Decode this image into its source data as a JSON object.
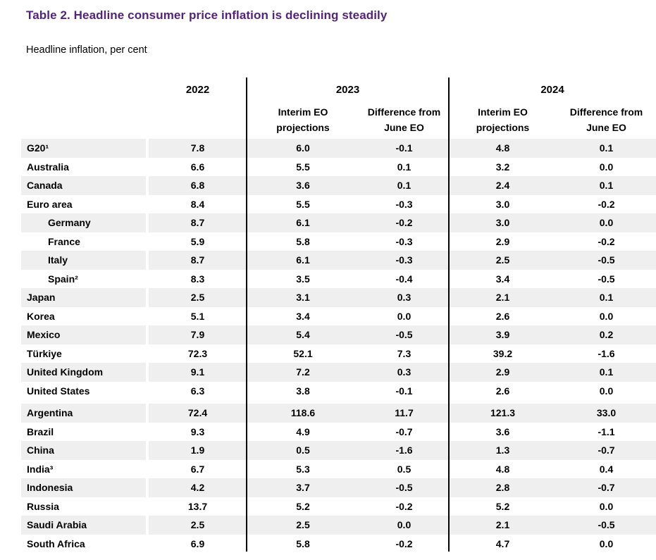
{
  "title": "Table 2. Headline consumer price inflation is declining steadily",
  "subtitle": "Headline inflation, per cent",
  "colors": {
    "title_purple": "#52247B",
    "row_shade": "#EFEFEF",
    "divider_black": "#000000"
  },
  "header": {
    "years": {
      "y2022": "2022",
      "y2023": "2023",
      "y2024": "2024"
    },
    "interim_line1": "Interim EO",
    "interim_line2": "projections",
    "diff_line1": "Difference from",
    "diff_line2": "June EO"
  },
  "rows": [
    {
      "label": "G20¹",
      "indent": false,
      "section": 1,
      "values": [
        "7.8",
        "6.0",
        "-0.1",
        "4.8",
        "0.1"
      ]
    },
    {
      "label": "Australia",
      "indent": false,
      "section": 1,
      "values": [
        "6.6",
        "5.5",
        "0.1",
        "3.2",
        "0.0"
      ]
    },
    {
      "label": "Canada",
      "indent": false,
      "section": 1,
      "values": [
        "6.8",
        "3.6",
        "0.1",
        "2.4",
        "0.1"
      ]
    },
    {
      "label": "Euro area",
      "indent": false,
      "section": 1,
      "values": [
        "8.4",
        "5.5",
        "-0.3",
        "3.0",
        "-0.2"
      ]
    },
    {
      "label": "Germany",
      "indent": true,
      "section": 1,
      "values": [
        "8.7",
        "6.1",
        "-0.2",
        "3.0",
        "0.0"
      ]
    },
    {
      "label": "France",
      "indent": true,
      "section": 1,
      "values": [
        "5.9",
        "5.8",
        "-0.3",
        "2.9",
        "-0.2"
      ]
    },
    {
      "label": "Italy",
      "indent": true,
      "section": 1,
      "values": [
        "8.7",
        "6.1",
        "-0.3",
        "2.5",
        "-0.5"
      ]
    },
    {
      "label": "Spain²",
      "indent": true,
      "section": 1,
      "values": [
        "8.3",
        "3.5",
        "-0.4",
        "3.4",
        "-0.5"
      ]
    },
    {
      "label": "Japan",
      "indent": false,
      "section": 1,
      "values": [
        "2.5",
        "3.1",
        "0.3",
        "2.1",
        "0.1"
      ]
    },
    {
      "label": "Korea",
      "indent": false,
      "section": 1,
      "values": [
        "5.1",
        "3.4",
        "0.0",
        "2.6",
        "0.0"
      ]
    },
    {
      "label": "Mexico",
      "indent": false,
      "section": 1,
      "values": [
        "7.9",
        "5.4",
        "-0.5",
        "3.9",
        "0.2"
      ]
    },
    {
      "label": "Türkiye",
      "indent": false,
      "section": 1,
      "values": [
        "72.3",
        "52.1",
        "7.3",
        "39.2",
        "-1.6"
      ]
    },
    {
      "label": "United Kingdom",
      "indent": false,
      "section": 1,
      "values": [
        "9.1",
        "7.2",
        "0.3",
        "2.9",
        "0.1"
      ]
    },
    {
      "label": "United States",
      "indent": false,
      "section": 1,
      "values": [
        "6.3",
        "3.8",
        "-0.1",
        "2.6",
        "0.0"
      ]
    },
    {
      "label": "Argentina",
      "indent": false,
      "section": 2,
      "values": [
        "72.4",
        "118.6",
        "11.7",
        "121.3",
        "33.0"
      ]
    },
    {
      "label": "Brazil",
      "indent": false,
      "section": 2,
      "values": [
        "9.3",
        "4.9",
        "-0.7",
        "3.6",
        "-1.1"
      ]
    },
    {
      "label": "China",
      "indent": false,
      "section": 2,
      "values": [
        "1.9",
        "0.5",
        "-1.6",
        "1.3",
        "-0.7"
      ]
    },
    {
      "label": "India³",
      "indent": false,
      "section": 2,
      "values": [
        "6.7",
        "5.3",
        "0.5",
        "4.8",
        "0.4"
      ]
    },
    {
      "label": "Indonesia",
      "indent": false,
      "section": 2,
      "values": [
        "4.2",
        "3.7",
        "-0.5",
        "2.8",
        "-0.7"
      ]
    },
    {
      "label": "Russia",
      "indent": false,
      "section": 2,
      "values": [
        "13.7",
        "5.2",
        "-0.2",
        "5.2",
        "0.0"
      ]
    },
    {
      "label": "Saudi Arabia",
      "indent": false,
      "section": 2,
      "values": [
        "2.5",
        "2.5",
        "0.0",
        "2.1",
        "-0.5"
      ]
    },
    {
      "label": "South Africa",
      "indent": false,
      "section": 2,
      "values": [
        "6.9",
        "5.8",
        "-0.2",
        "4.7",
        "0.0"
      ]
    }
  ]
}
